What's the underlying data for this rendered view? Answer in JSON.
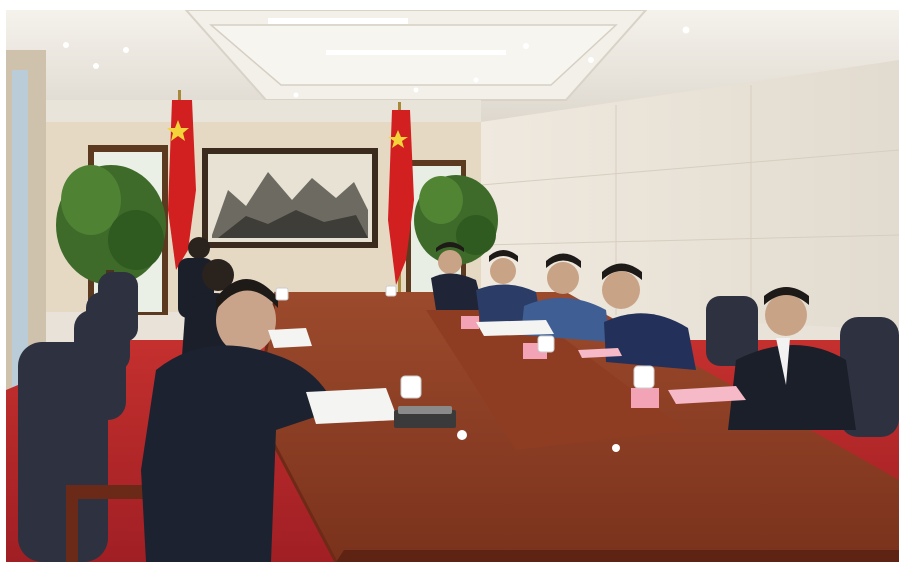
{
  "image": {
    "kind": "photo",
    "subject": "meeting-room",
    "colors": {
      "ceiling": "#ece8e2",
      "wall_left": "#e6d9c4",
      "wall_right": "#ede7dc",
      "carpet": "#b8262a",
      "table": "#8a3a22",
      "table_edge": "#6e2a16",
      "flag": "#d21f1f",
      "flag_star": "#f4d23a",
      "suit": "#1f2536",
      "jacket_blue": "#2b3f70",
      "chair": "#2e3240",
      "plant": "#3e6b2a",
      "name_card": "#f2a3b6"
    }
  }
}
